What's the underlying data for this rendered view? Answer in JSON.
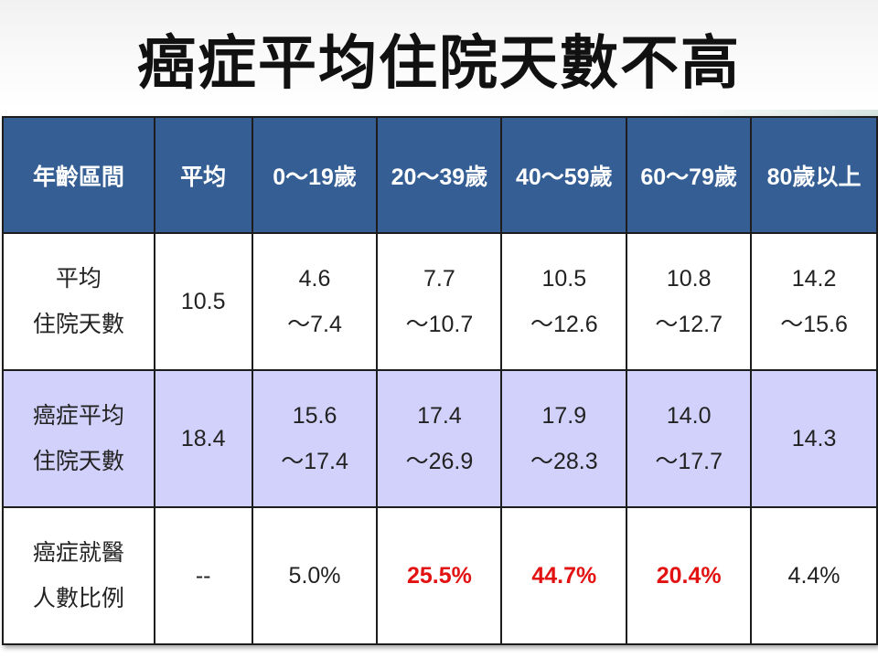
{
  "title": "癌症平均住院天數不高",
  "table": {
    "headers": [
      "年齡區間",
      "平均",
      "0～19歲",
      "20～39歲",
      "40～59歲",
      "60～79歲",
      "80歲以上"
    ],
    "rows": [
      {
        "label": [
          "平均",
          "住院天數"
        ],
        "cells": [
          [
            "10.5"
          ],
          [
            "4.6",
            "～7.4"
          ],
          [
            "7.7",
            "～10.7"
          ],
          [
            "10.5",
            "～12.6"
          ],
          [
            "10.8",
            "～12.7"
          ],
          [
            "14.2",
            "～15.6"
          ]
        ]
      },
      {
        "label": [
          "癌症平均",
          "住院天數"
        ],
        "cells": [
          [
            "18.4"
          ],
          [
            "15.6",
            "～17.4"
          ],
          [
            "17.4",
            "～26.9"
          ],
          [
            "17.9",
            "～28.3"
          ],
          [
            "14.0",
            "～17.7"
          ],
          [
            "14.3"
          ]
        ]
      },
      {
        "label": [
          "癌症就醫",
          "人數比例"
        ],
        "cells": [
          [
            "--"
          ],
          [
            "5.0%"
          ],
          [
            "25.5%"
          ],
          [
            "44.7%"
          ],
          [
            "20.4%"
          ],
          [
            "4.4%"
          ]
        ]
      }
    ]
  },
  "colors": {
    "header_bg": "#355f94",
    "header_text": "#ffffff",
    "alt_row_bg": "#d2d1fb",
    "highlight": "#e31212"
  }
}
